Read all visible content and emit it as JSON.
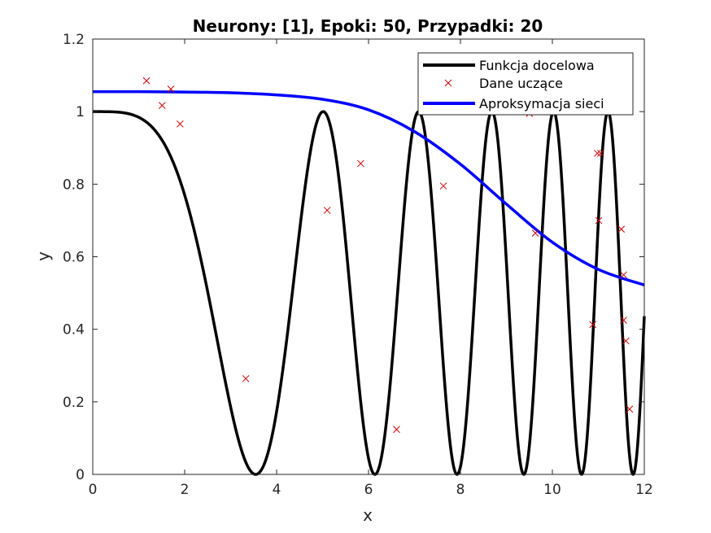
{
  "chart_data": {
    "type": "line",
    "title": "Neurony: [1], Epoki: 50, Przypadki: 20",
    "xlabel": "x",
    "ylabel": "y",
    "xlim": [
      0,
      12
    ],
    "ylim": [
      0,
      1.2
    ],
    "xticks": [
      0,
      2,
      4,
      6,
      8,
      10,
      12
    ],
    "yticks": [
      0,
      0.2,
      0.4,
      0.6,
      0.8,
      1,
      1.2
    ],
    "xtick_labels": [
      "0",
      "2",
      "4",
      "6",
      "8",
      "10",
      "12"
    ],
    "ytick_labels": [
      "0",
      "0.2",
      "0.4",
      "0.6",
      "0.8",
      "1",
      "1.2"
    ],
    "grid": false,
    "legend_position": "top-right",
    "colors": {
      "target": "#000000",
      "training": "#cc0000",
      "approx": "#0000ff"
    },
    "series": [
      {
        "name": "Funkcja docelowa",
        "style": "line",
        "function": "0.5*(1+cos(x^2/4))",
        "x_range": [
          0,
          12
        ]
      },
      {
        "name": "Dane uczące",
        "style": "markers",
        "points": [
          [
            1.17,
            1.085
          ],
          [
            1.51,
            1.017
          ],
          [
            1.7,
            1.062
          ],
          [
            1.9,
            0.966
          ],
          [
            3.33,
            0.264
          ],
          [
            5.1,
            0.728
          ],
          [
            5.83,
            0.857
          ],
          [
            6.61,
            0.124
          ],
          [
            7.63,
            0.795
          ],
          [
            9.5,
            0.995
          ],
          [
            9.63,
            0.665
          ],
          [
            10.88,
            0.413
          ],
          [
            10.98,
            0.885
          ],
          [
            11.01,
            0.7
          ],
          [
            11.5,
            0.676
          ],
          [
            11.55,
            0.55
          ],
          [
            11.55,
            0.425
          ],
          [
            11.6,
            0.368
          ],
          [
            11.68,
            0.18
          ],
          [
            11.05,
            0.885
          ]
        ]
      },
      {
        "name": "Aproksymacja sieci",
        "style": "line",
        "points": [
          [
            0,
            1.055
          ],
          [
            1,
            1.055
          ],
          [
            2,
            1.054
          ],
          [
            3,
            1.052
          ],
          [
            4,
            1.046
          ],
          [
            5,
            1.034
          ],
          [
            6,
            1.005
          ],
          [
            7,
            0.945
          ],
          [
            8,
            0.855
          ],
          [
            9,
            0.745
          ],
          [
            10,
            0.64
          ],
          [
            11,
            0.565
          ],
          [
            12,
            0.522
          ]
        ]
      }
    ]
  }
}
